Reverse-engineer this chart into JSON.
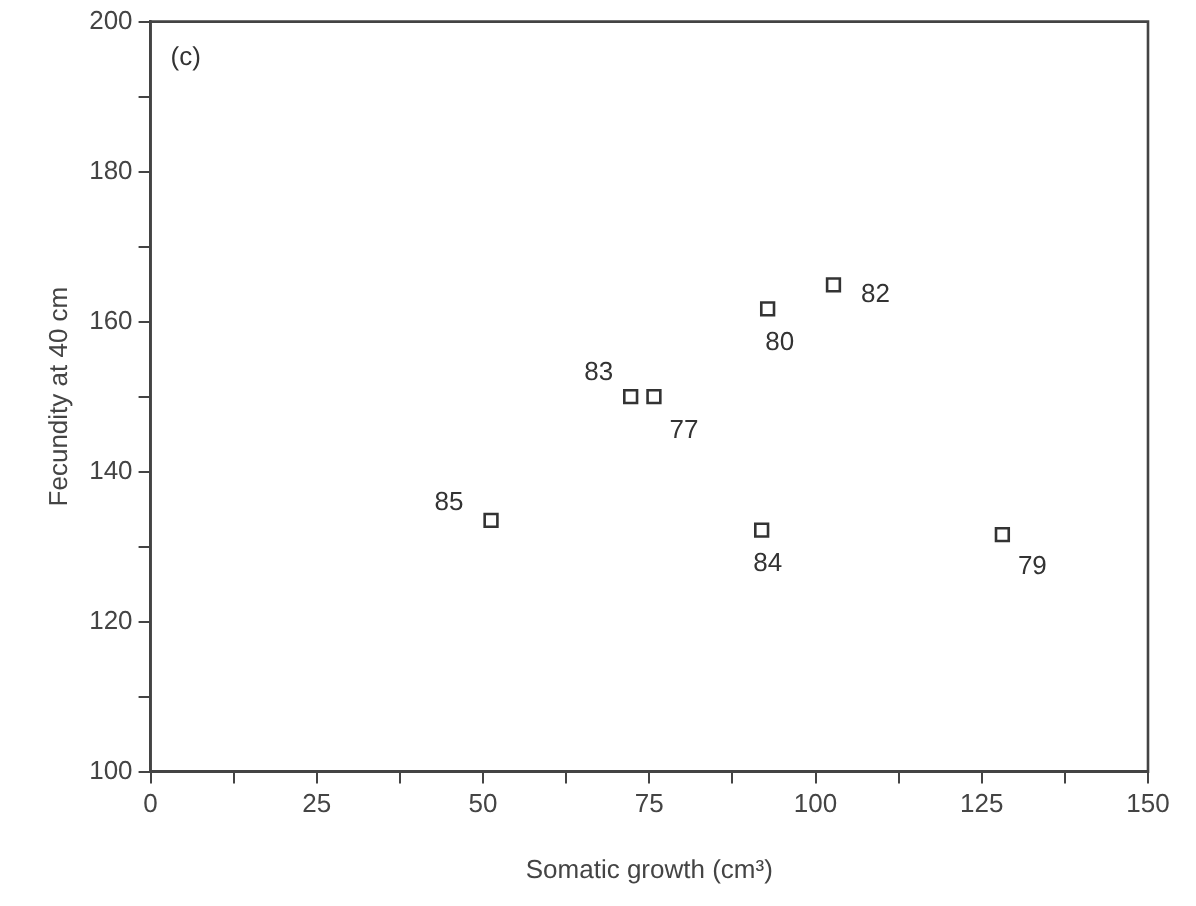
{
  "chart_data": {
    "type": "scatter",
    "xlabel": "Somatic growth (cm³)",
    "ylabel": "Fecundity at 40 cm",
    "x": [
      51.2,
      72.2,
      75.7,
      92.8,
      102.7,
      91.9,
      128.1
    ],
    "series": [
      {
        "color": "#333333",
        "values": [
          133.5,
          150,
          150,
          161.7,
          164.9,
          132.2,
          131.6
        ]
      }
    ],
    "marker": "square",
    "xlim": [
      0,
      150
    ],
    "ylim": [
      100,
      200
    ],
    "xticks": [
      0,
      {
        "value": 12.5,
        "label": null
      },
      25,
      {
        "value": 37.5,
        "label": null
      },
      50,
      {
        "value": 62.5,
        "label": null
      },
      75,
      {
        "value": 87.5,
        "label": null
      },
      100,
      {
        "value": 112.5,
        "label": null
      },
      125,
      {
        "value": 137.5,
        "label": null
      },
      150
    ],
    "yticks": [
      100,
      {
        "value": 110,
        "label": null
      },
      120,
      {
        "value": 130,
        "label": null
      },
      140,
      {
        "value": 150,
        "label": null
      },
      160,
      {
        "value": 170,
        "label": null
      },
      180,
      {
        "value": 190,
        "label": null
      },
      200
    ],
    "grid": false,
    "legend": false,
    "annotations": [
      "(c)",
      {
        "text": "85",
        "x": 51.2,
        "y": 133.5
      },
      {
        "text": "83",
        "x": 72.2,
        "y": 150
      },
      {
        "text": "77",
        "x": 75.7,
        "y": 150
      },
      {
        "text": "80",
        "x": 92.8,
        "y": 161.7
      },
      {
        "text": "82",
        "x": 102.7,
        "y": 164.9
      },
      {
        "text": "84",
        "x": 91.9,
        "y": 132.2
      },
      {
        "text": "79",
        "x": 128.1,
        "y": 131.6
      }
    ]
  }
}
